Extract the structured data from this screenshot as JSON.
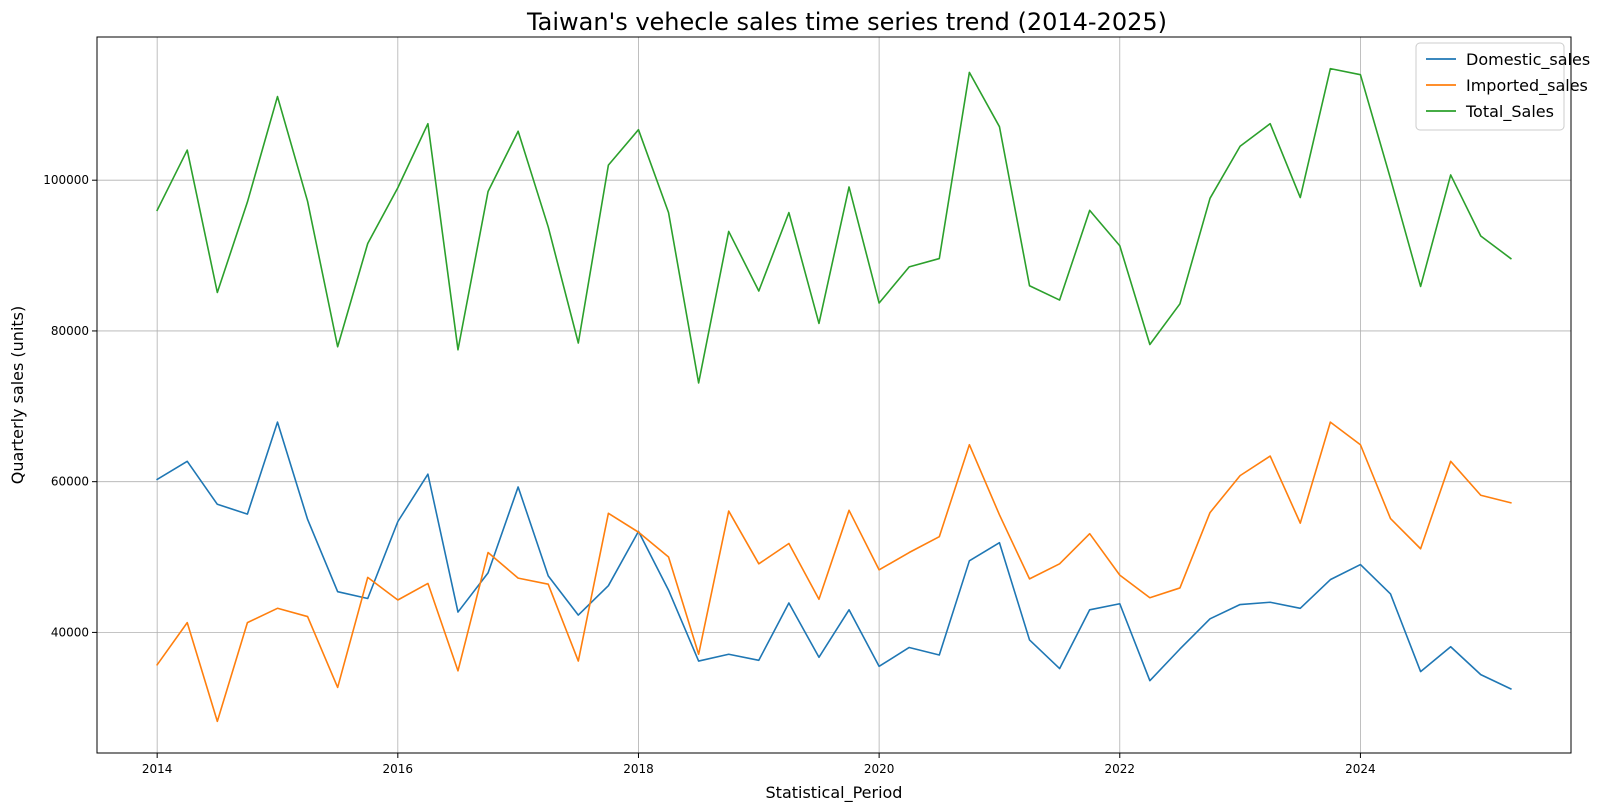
{
  "chart_data": {
    "type": "line",
    "title": "Taiwan's vehecle sales time series trend (2014-2025)",
    "xlabel": "Statistical_Period",
    "ylabel": "Quarterly sales (units)",
    "x": [
      "2014-Q1",
      "2014-Q2",
      "2014-Q3",
      "2014-Q4",
      "2015-Q1",
      "2015-Q2",
      "2015-Q3",
      "2015-Q4",
      "2016-Q1",
      "2016-Q2",
      "2016-Q3",
      "2016-Q4",
      "2017-Q1",
      "2017-Q2",
      "2017-Q3",
      "2017-Q4",
      "2018-Q1",
      "2018-Q2",
      "2018-Q3",
      "2018-Q4",
      "2019-Q1",
      "2019-Q2",
      "2019-Q3",
      "2019-Q4",
      "2020-Q1",
      "2020-Q2",
      "2020-Q3",
      "2020-Q4",
      "2021-Q1",
      "2021-Q2",
      "2021-Q3",
      "2021-Q4",
      "2022-Q1",
      "2022-Q2",
      "2022-Q3",
      "2022-Q4",
      "2023-Q1",
      "2023-Q2",
      "2023-Q3",
      "2023-Q4",
      "2024-Q1",
      "2024-Q2",
      "2024-Q3",
      "2024-Q4",
      "2025-Q1",
      "2025-Q2"
    ],
    "xticks": [
      "2014",
      "2016",
      "2018",
      "2020",
      "2022",
      "2024"
    ],
    "yticks": [
      40000,
      60000,
      80000,
      100000
    ],
    "xlim": [
      "2013-Q3",
      "2025-Q4"
    ],
    "ylim": [
      24000,
      119000
    ],
    "grid": true,
    "legend_position": "top-right",
    "series": [
      {
        "name": "Domestic_sales",
        "color": "#1f77b4",
        "values": [
          60300,
          62700,
          57000,
          55700,
          67900,
          55000,
          45400,
          44500,
          54700,
          61000,
          42700,
          47900,
          59300,
          47500,
          42300,
          46200,
          53400,
          45600,
          36200,
          37100,
          36300,
          43900,
          36700,
          43000,
          35500,
          38000,
          37000,
          49500,
          51900,
          39000,
          35200,
          43000,
          43800,
          33600,
          37800,
          41800,
          43700,
          44000,
          43200,
          47000,
          49000,
          45100,
          34800,
          38100,
          34400,
          32500
        ]
      },
      {
        "name": "Imported_sales",
        "color": "#ff7f0e",
        "values": [
          35700,
          41300,
          28200,
          41300,
          43200,
          42100,
          32700,
          47300,
          44300,
          46500,
          34900,
          50600,
          47200,
          46400,
          36200,
          55800,
          53300,
          50000,
          37100,
          56100,
          49100,
          51800,
          44400,
          56200,
          48300,
          50600,
          52700,
          64900,
          55600,
          47100,
          49100,
          53100,
          47600,
          44600,
          45900,
          55900,
          60800,
          63400,
          54500,
          67900,
          64900,
          55100,
          51100,
          62700,
          58200,
          57200
        ]
      },
      {
        "name": "Total_Sales",
        "color": "#2ca02c",
        "values": [
          96000,
          104000,
          85100,
          97100,
          111100,
          97200,
          77900,
          91600,
          99000,
          107500,
          77500,
          98500,
          106500,
          93800,
          78400,
          102000,
          106700,
          95700,
          73100,
          93200,
          85300,
          95700,
          81000,
          99100,
          83700,
          88500,
          89600,
          114300,
          107100,
          86000,
          84100,
          96000,
          91300,
          78200,
          83600,
          97600,
          104500,
          107500,
          97700,
          114800,
          114000,
          100200,
          85900,
          100700,
          92600,
          89600
        ]
      }
    ]
  }
}
